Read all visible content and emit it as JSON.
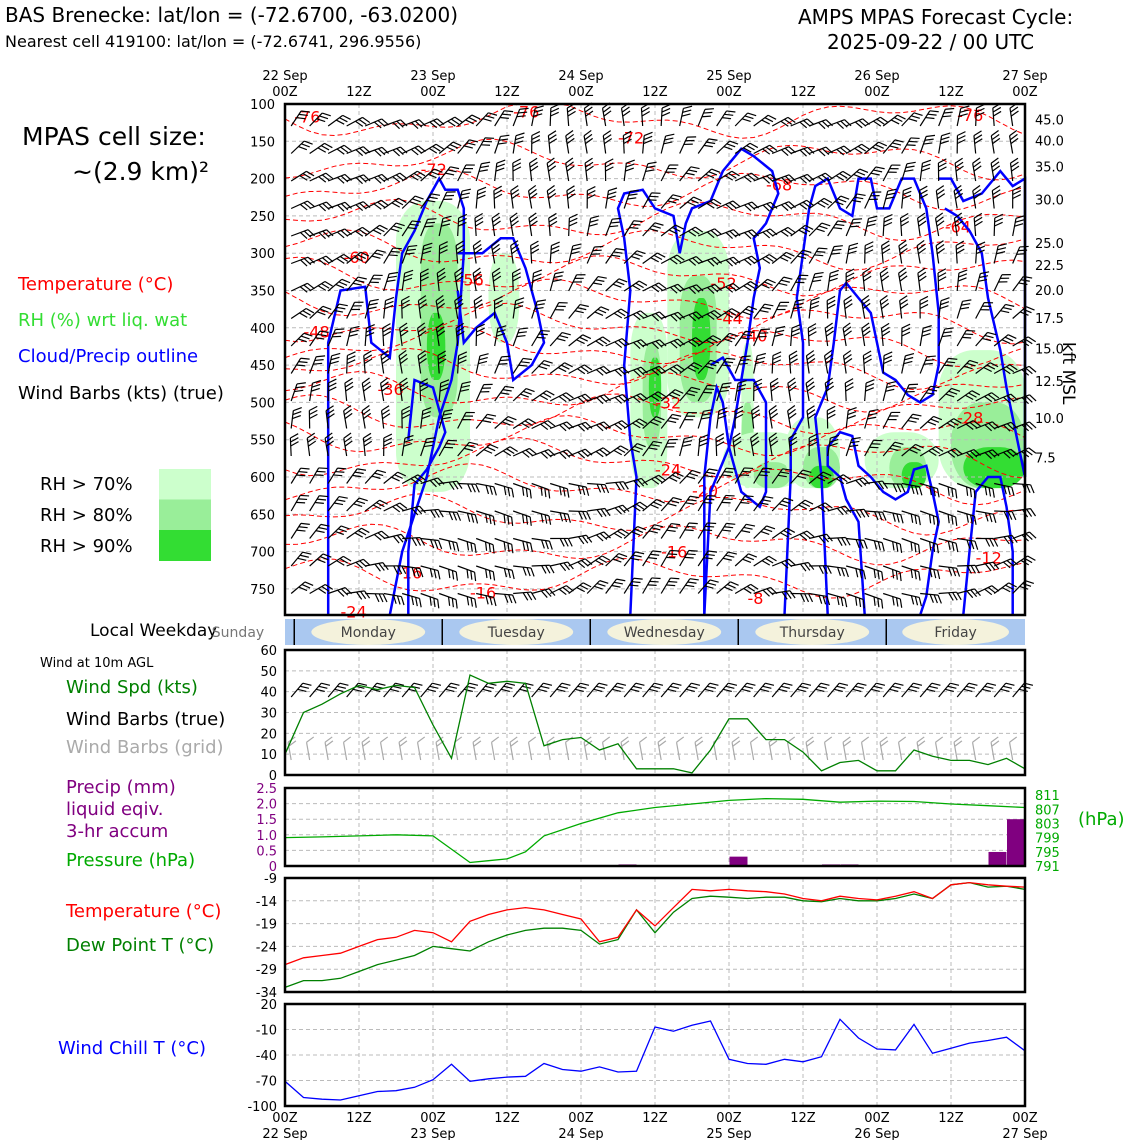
{
  "header": {
    "station": "BAS Brenecke: lat/lon = (-72.6700, -63.0200)",
    "cell": "Nearest cell 419100: lat/lon = (-72.6741, 296.9556)",
    "model": "AMPS MPAS Forecast Cycle:",
    "cycle": "2025-09-22 / 00 UTC"
  },
  "time_axis": {
    "top_labels": [
      "22 Sep\n00Z",
      "12Z",
      "23 Sep\n00Z",
      "12Z",
      "24 Sep\n00Z",
      "12Z",
      "25 Sep\n00Z",
      "12Z",
      "26 Sep\n00Z",
      "12Z",
      "27 Sep\n00Z"
    ],
    "bottom_labels": [
      "00Z\n22 Sep",
      "12Z",
      "00Z\n23 Sep",
      "12Z",
      "00Z\n24 Sep",
      "12Z",
      "00Z\n25 Sep",
      "12Z",
      "00Z\n26 Sep",
      "12Z",
      "00Z\n27 Sep"
    ],
    "range_hours": [
      0,
      120
    ]
  },
  "legend": {
    "cell_size_line1": "MPAS cell size:",
    "cell_size_line2": "~(2.9 km)²",
    "temperature": "Temperature (°C)",
    "rh": "RH (%) wrt liq. wat",
    "cloud": "Cloud/Precip outline",
    "barbs": "Wind Barbs (kts) (true)",
    "rh70": "RH > 70%",
    "rh80": "RH > 80%",
    "rh90": "RH > 90%",
    "rh_colors": [
      "#ccffcc",
      "#99ee99",
      "#33dd33"
    ],
    "local_weekday": "Local Weekday",
    "wind10m": "Wind at 10m AGL",
    "wind_spd": "Wind Spd (kts)",
    "barbs_true": "Wind Barbs (true)",
    "barbs_grid": "Wind Barbs (grid)",
    "precip1": "Precip (mm)",
    "precip2": "liquid eqiv.",
    "precip3": "3-hr accum",
    "pressure": "Pressure (hPa)",
    "hpa_unit": "(hPa)",
    "temp2": "Temperature (°C)",
    "dewpoint": "Dew Point T (°C)",
    "windchill": "Wind Chill T (°C)",
    "kft": "kft MSL"
  },
  "weekdays": [
    "Sunday",
    "Monday",
    "Tuesday",
    "Wednesday",
    "Thursday",
    "Friday"
  ],
  "chart_data": [
    {
      "type": "heatmap",
      "title": "",
      "ylabel": "",
      "y_ticks_hPa": [
        100,
        150,
        200,
        250,
        300,
        350,
        400,
        450,
        500,
        550,
        600,
        650,
        700,
        750
      ],
      "ylim_hPa": [
        100,
        785
      ],
      "right_axis_kft": [
        "45.0",
        "40.0",
        "35.0",
        "30.0",
        "25.0",
        "22.5",
        "20.0",
        "17.5",
        "15.0",
        "12.5",
        "10.0",
        "7.5"
      ],
      "right_axis_kft_pressure": [
        121,
        149,
        184,
        228,
        286,
        316,
        349,
        387,
        428,
        471,
        521,
        574
      ],
      "temp_labels": [
        {
          "t": 1.5,
          "p": 117,
          "v": "-76"
        },
        {
          "t": 37,
          "p": 110,
          "v": "-76"
        },
        {
          "t": 109,
          "p": 115,
          "v": "-76"
        },
        {
          "t": 54,
          "p": 145,
          "v": "-72"
        },
        {
          "t": 22,
          "p": 187,
          "v": "-72"
        },
        {
          "t": 78,
          "p": 208,
          "v": "-68"
        },
        {
          "t": 107,
          "p": 264,
          "v": "-64"
        },
        {
          "t": 9.5,
          "p": 305,
          "v": "-60"
        },
        {
          "t": 28,
          "p": 335,
          "v": "-56"
        },
        {
          "t": 69,
          "p": 340,
          "v": "-52"
        },
        {
          "t": 3,
          "p": 405,
          "v": "-48"
        },
        {
          "t": 70,
          "p": 387,
          "v": "-44"
        },
        {
          "t": 74,
          "p": 410,
          "v": "-40"
        },
        {
          "t": 15,
          "p": 482,
          "v": "-36"
        },
        {
          "t": 60,
          "p": 500,
          "v": "-32"
        },
        {
          "t": 109,
          "p": 520,
          "v": "-28"
        },
        {
          "t": 60,
          "p": 590,
          "v": "-24"
        },
        {
          "t": 66,
          "p": 618,
          "v": "-20"
        },
        {
          "t": 18,
          "p": 728,
          "v": "-16"
        },
        {
          "t": 30,
          "p": 755,
          "v": "-16"
        },
        {
          "t": 61,
          "p": 700,
          "v": "-16"
        },
        {
          "t": 112,
          "p": 708,
          "v": "-12"
        },
        {
          "t": 75,
          "p": 762,
          "v": "-8"
        },
        {
          "t": 9,
          "p": 780,
          "v": "-24"
        }
      ]
    },
    {
      "type": "line",
      "title": "",
      "ylabel": "",
      "ylim": [
        0,
        60
      ],
      "yticks": [
        0,
        10,
        20,
        30,
        40,
        50,
        60
      ],
      "series": [
        {
          "name": "Wind Spd (kts)",
          "color": "#008000",
          "x": [
            0,
            3,
            6,
            9,
            12,
            15,
            18,
            21,
            24,
            27,
            30,
            33,
            36,
            39,
            42,
            45,
            48,
            51,
            54,
            57,
            60,
            63,
            66,
            69,
            72,
            75,
            78,
            81,
            84,
            87,
            90,
            93,
            96,
            99,
            102,
            105,
            108,
            111,
            114,
            117,
            120
          ],
          "values": [
            10,
            30,
            34,
            39,
            43,
            41,
            43,
            42,
            24,
            8,
            48,
            44,
            45,
            44,
            14,
            17,
            18,
            12,
            15,
            3,
            3,
            3,
            1,
            12,
            27,
            27,
            17,
            17,
            11,
            2,
            6,
            7,
            2,
            2,
            12,
            9,
            7,
            7,
            5,
            8,
            3
          ]
        }
      ]
    },
    {
      "type": "bar",
      "title": "",
      "ylabel": "",
      "ylim": [
        0,
        2.5
      ],
      "yticks": [
        "0",
        "0.5",
        "1.0",
        "1.5",
        "2.0",
        "2.5"
      ],
      "precip_mm": {
        "x": [
          57,
          75,
          90,
          93,
          117,
          120
        ],
        "values": [
          0.05,
          0.3,
          0.05,
          0.05,
          0.45,
          1.5
        ]
      },
      "pressure_hPa": {
        "x": [
          0,
          6,
          12,
          18,
          24,
          30,
          33,
          36,
          39,
          42,
          48,
          54,
          60,
          66,
          72,
          78,
          84,
          90,
          96,
          102,
          108,
          114,
          120
        ],
        "values": [
          799,
          799.2,
          799.5,
          799.8,
          799.5,
          792,
          792.5,
          793,
          795,
          799.5,
          803,
          806,
          807.5,
          808.5,
          809.5,
          810,
          809.8,
          809,
          809.3,
          809.2,
          808.5,
          808,
          807.5
        ],
        "ylim": [
          791,
          813
        ],
        "yticks": [
          "811",
          "807",
          "803",
          "799",
          "795",
          "791"
        ]
      }
    },
    {
      "type": "line",
      "title": "",
      "ylabel": "",
      "ylim": [
        -34,
        -9
      ],
      "yticks": [
        -9,
        -14,
        -19,
        -24,
        -29,
        -34
      ],
      "series": [
        {
          "name": "Temperature (°C)",
          "color": "#ff0000",
          "x": [
            0,
            3,
            6,
            9,
            12,
            15,
            18,
            21,
            24,
            27,
            30,
            33,
            36,
            39,
            42,
            45,
            48,
            51,
            54,
            57,
            60,
            63,
            66,
            69,
            72,
            75,
            78,
            81,
            84,
            87,
            90,
            93,
            96,
            99,
            102,
            105,
            108,
            111,
            114,
            117,
            120
          ],
          "values": [
            -28,
            -26.5,
            -26,
            -25.5,
            -24,
            -22.5,
            -22,
            -20.5,
            -21,
            -23,
            -18.5,
            -17,
            -16,
            -15.5,
            -16,
            -17,
            -18,
            -23,
            -22,
            -16,
            -19.5,
            -15.5,
            -11.5,
            -11.8,
            -11.5,
            -11.8,
            -12,
            -12.5,
            -13.5,
            -14,
            -13,
            -13.5,
            -13.8,
            -13,
            -12,
            -13.5,
            -10.5,
            -10,
            -10.5,
            -10.8,
            -11
          ]
        },
        {
          "name": "Dew Point T (°C)",
          "color": "#008000",
          "x": [
            0,
            3,
            6,
            9,
            12,
            15,
            18,
            21,
            24,
            27,
            30,
            33,
            36,
            39,
            42,
            45,
            48,
            51,
            54,
            57,
            60,
            63,
            66,
            69,
            72,
            75,
            78,
            81,
            84,
            87,
            90,
            93,
            96,
            99,
            102,
            105,
            108,
            111,
            114,
            117,
            120
          ],
          "values": [
            -33,
            -31.5,
            -31.5,
            -31,
            -29.5,
            -28,
            -27,
            -26,
            -24,
            -24.5,
            -25,
            -23,
            -21.5,
            -20.5,
            -20,
            -20,
            -20.5,
            -23.5,
            -22.5,
            -16,
            -21,
            -16.5,
            -13.5,
            -13,
            -13.2,
            -13.5,
            -13.2,
            -13.2,
            -14,
            -14.2,
            -13.5,
            -14,
            -14,
            -13.5,
            -12.5,
            -13.5,
            -10.5,
            -10,
            -11,
            -10.8,
            -11.5
          ]
        }
      ]
    },
    {
      "type": "line",
      "title": "",
      "ylabel": "",
      "ylim": [
        -100,
        20
      ],
      "yticks": [
        20,
        -10,
        -40,
        -70,
        -100
      ],
      "series": [
        {
          "name": "Wind Chill T (°C)",
          "color": "#0000ff",
          "x": [
            0,
            3,
            6,
            9,
            12,
            15,
            18,
            21,
            24,
            27,
            30,
            33,
            36,
            39,
            42,
            45,
            48,
            51,
            54,
            57,
            60,
            63,
            66,
            69,
            72,
            75,
            78,
            81,
            84,
            87,
            90,
            93,
            96,
            99,
            102,
            105,
            108,
            111,
            114,
            117,
            120
          ],
          "values": [
            -71,
            -90,
            -92,
            -93,
            -88,
            -83,
            -82,
            -78,
            -69,
            -51,
            -71,
            -68,
            -66,
            -65,
            -50,
            -57,
            -59,
            -54,
            -60,
            -59,
            -7,
            -12,
            -5,
            0,
            -45,
            -50,
            -51,
            -45,
            -48,
            -42,
            2,
            -20,
            -33,
            -34,
            -4,
            -38,
            -32,
            -26,
            -23,
            -19,
            -35
          ]
        }
      ]
    }
  ]
}
